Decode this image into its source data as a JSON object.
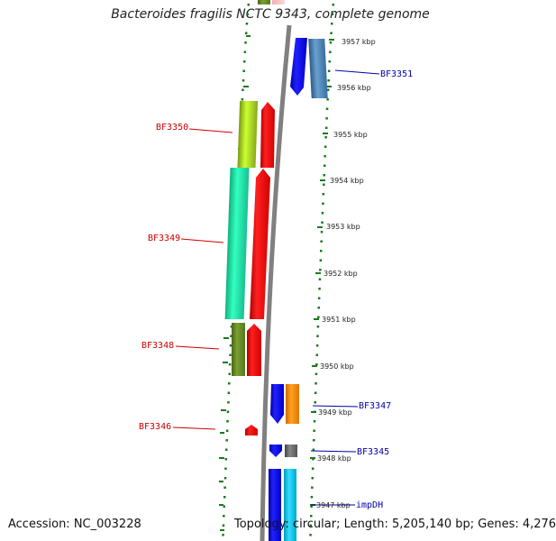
{
  "title": "Bacteroides fragilis NCTC 9343, complete genome",
  "footer": {
    "accession": "Accession: NC_003228",
    "info": "Topology: circular; Length: 5,205,140 bp; Genes: 4,276"
  },
  "colors": {
    "backbone": "#808080",
    "ticks": "#1a7a1a",
    "label_left": "#cc0000",
    "label_right": "#0000aa"
  },
  "scale": {
    "unit": "kbp",
    "positions_kbp": [
      3957,
      3956,
      3955,
      3954,
      3953,
      3952,
      3951,
      3950,
      3949,
      3948,
      3947
    ]
  },
  "genes_left": [
    {
      "label": "BF3350",
      "color": "#ff0000"
    },
    {
      "label": "BF3349",
      "color": "#ff0000"
    },
    {
      "label": "BF3348",
      "color": "#ff0000"
    },
    {
      "label": "BF3346",
      "color": "#ff0000"
    }
  ],
  "genes_right": [
    {
      "label": "BF3351",
      "color": "#0000ee"
    },
    {
      "label": "BF3347",
      "color": "#0000ee"
    },
    {
      "label": "BF3345",
      "color": "#0000ee"
    },
    {
      "label": "impDH",
      "color": "#0000ee"
    }
  ],
  "cog_colors": [
    "#aacc22",
    "#22ffaa",
    "#6b8e23",
    "#ff8c00",
    "#666666",
    "#00ccee",
    "#4682b4"
  ]
}
